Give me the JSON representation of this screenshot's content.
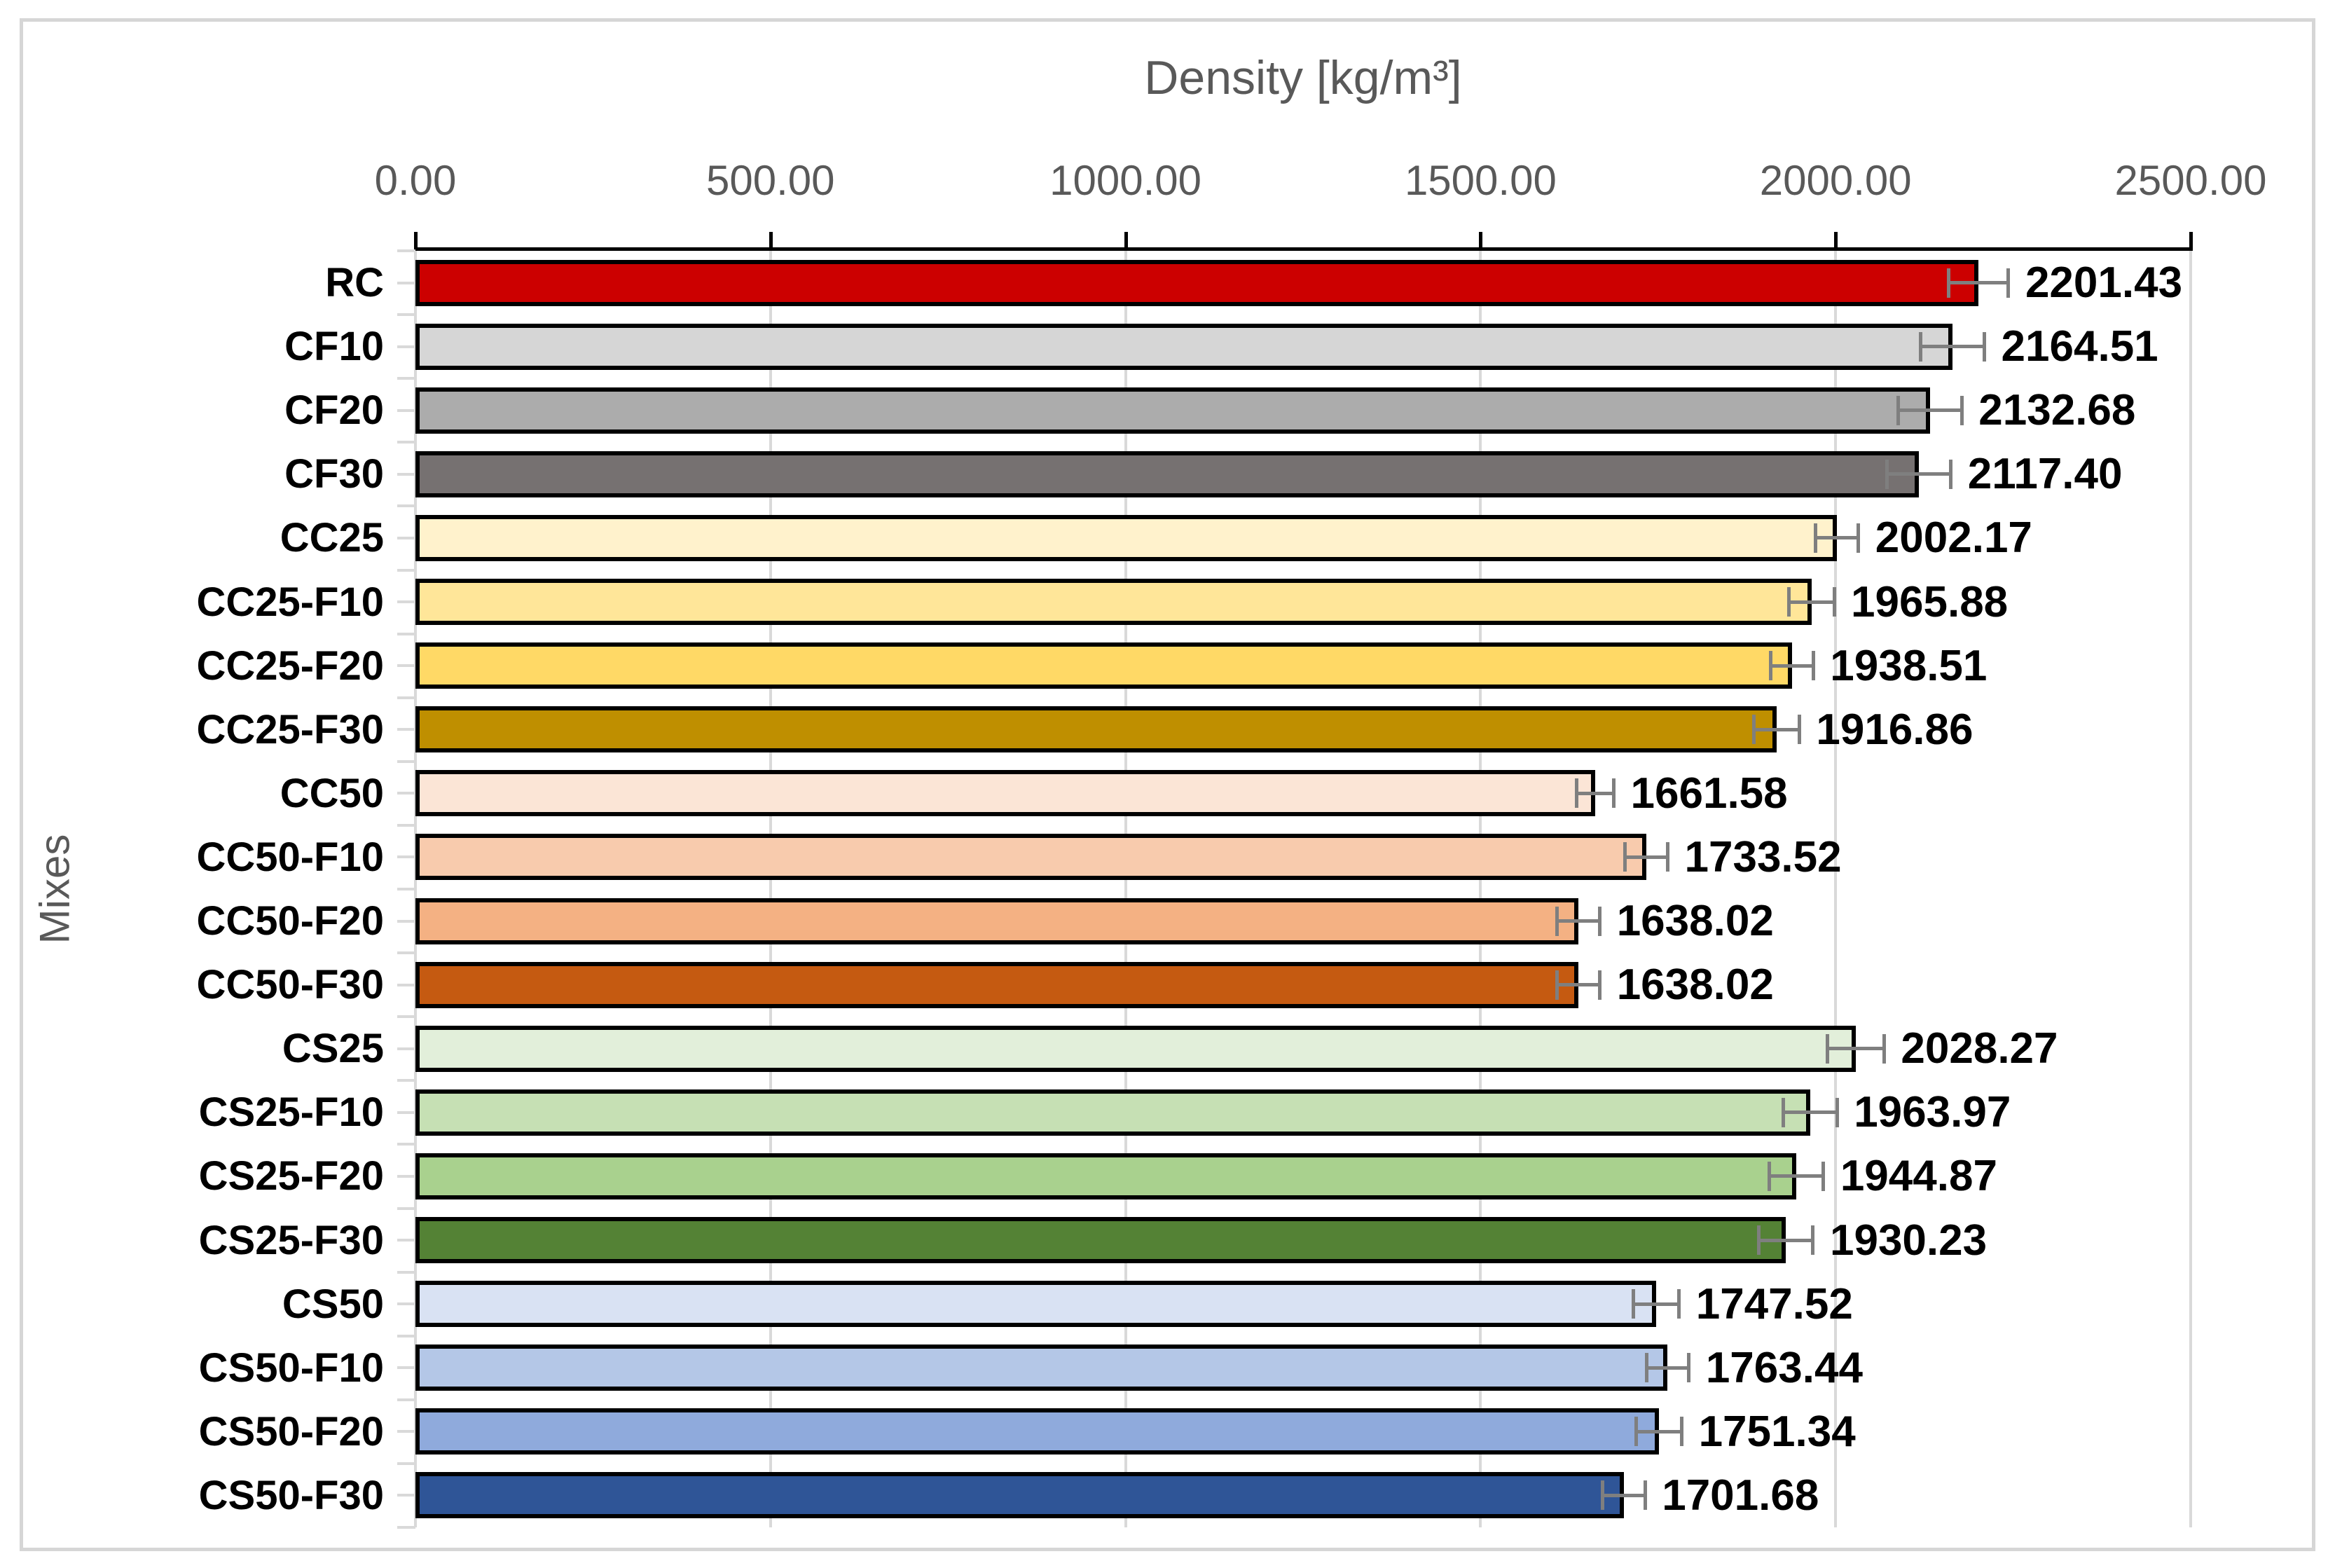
{
  "chart": {
    "title": "Density [kg/m³]",
    "y_axis_title": "Mixes"
  },
  "chart_data": {
    "type": "bar",
    "orientation": "horizontal",
    "title": "Density [kg/m³]",
    "xlabel": "Density [kg/m³]",
    "ylabel": "Mixes",
    "xlim": [
      0,
      2500
    ],
    "x_tick_labels": [
      "0.00",
      "500.00",
      "1000.00",
      "1500.00",
      "2000.00",
      "2500.00"
    ],
    "grid": true,
    "legend": false,
    "categories": [
      "RC",
      "CF10",
      "CF20",
      "CF30",
      "CC25",
      "CC25-F10",
      "CC25-F20",
      "CC25-F30",
      "CC50",
      "CC50-F10",
      "CC50-F20",
      "CC50-F30",
      "CS25",
      "CS25-F10",
      "CS25-F20",
      "CS25-F30",
      "CS50",
      "CS50-F10",
      "CS50-F20",
      "CS50-F30"
    ],
    "values": [
      2201.43,
      2164.51,
      2132.68,
      2117.4,
      2002.17,
      1965.88,
      1938.51,
      1916.86,
      1661.58,
      1733.52,
      1638.02,
      1638.02,
      2028.27,
      1963.97,
      1944.87,
      1930.23,
      1747.52,
      1763.44,
      1751.34,
      1701.68
    ],
    "value_labels": [
      "2201.43",
      "2164.51",
      "2132.68",
      "2117.40",
      "2002.17",
      "1965.88",
      "1938.51",
      "1916.86",
      "1661.58",
      "1733.52",
      "1638.02",
      "1638.02",
      "2028.27",
      "1963.97",
      "1944.87",
      "1930.23",
      "1747.52",
      "1763.44",
      "1751.34",
      "1701.68"
    ],
    "errors": [
      42,
      45,
      45,
      45,
      30,
      32,
      30,
      32,
      26,
      30,
      30,
      30,
      40,
      38,
      38,
      38,
      32,
      30,
      32,
      30
    ],
    "bar_colors": [
      "#CC0000",
      "#D6D6D6",
      "#ACACAC",
      "#767171",
      "#FFF2CC",
      "#FFE699",
      "#FFD966",
      "#BF8F00",
      "#FBE5D6",
      "#F8CBAD",
      "#F4B183",
      "#C55A11",
      "#E2EFDA",
      "#C6E0B4",
      "#A9D18E",
      "#548235",
      "#D9E2F3",
      "#B4C7E7",
      "#8FAADC",
      "#2F5597"
    ],
    "styles": {
      "bar_border": "#000000",
      "grid_color": "#D9D9D9",
      "axis_line_color": "#000000",
      "axis_text_color": "#595959",
      "error_bar_color": "#7F7F7F",
      "data_label_color": "#000000",
      "frame_border_color": "#D6D6D6"
    }
  }
}
